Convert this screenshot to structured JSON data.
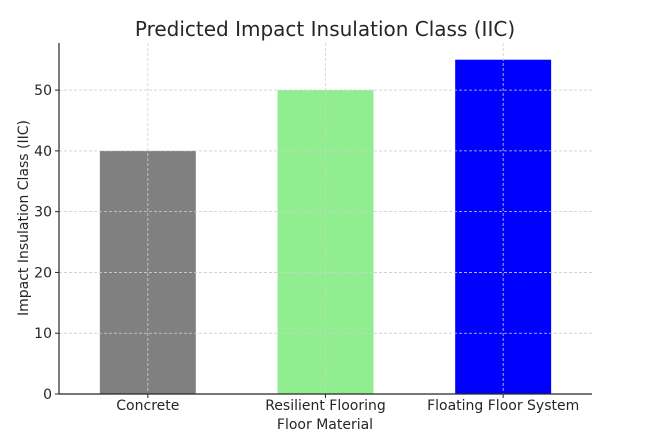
{
  "chart_data": {
    "type": "bar",
    "title": "Predicted Impact Insulation Class (IIC)",
    "xlabel": "Floor Material",
    "ylabel": "Impact Insulation Class (IIC)",
    "categories": [
      "Concrete",
      "Resilient Flooring",
      "Floating Floor System"
    ],
    "values": [
      40,
      50,
      55
    ],
    "colors": [
      "#808080",
      "#90ee90",
      "#0000ff"
    ],
    "ylim": [
      0,
      57.75
    ],
    "yticks": [
      0,
      10,
      20,
      30,
      40,
      50
    ],
    "grid": true
  }
}
